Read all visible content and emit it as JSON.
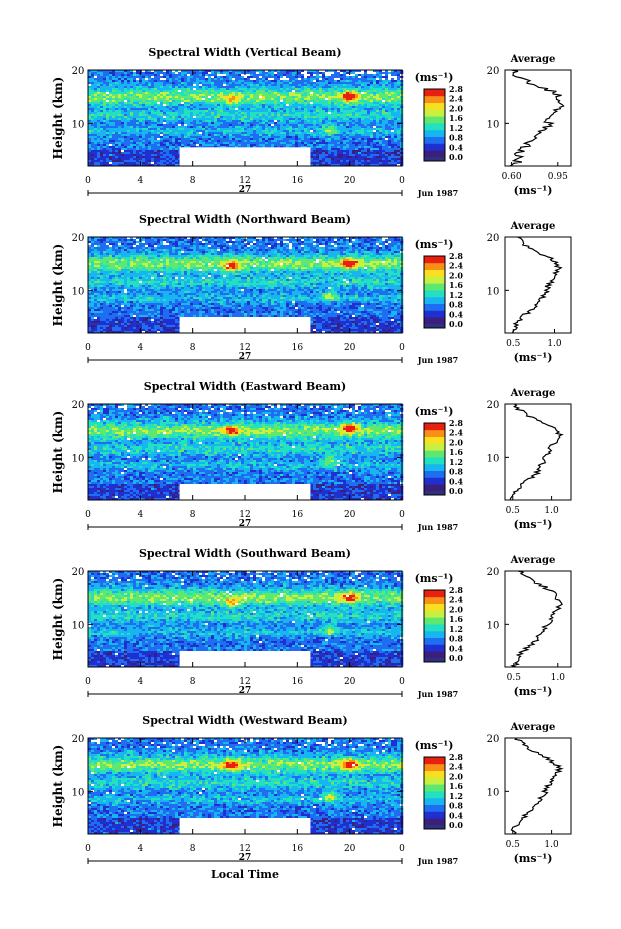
{
  "chart_data": [
    {
      "type": "heatmap",
      "title": "Spectral Width (Vertical Beam)",
      "ylabel": "Height (km)",
      "xlabel": "",
      "x_ticks": [
        "0",
        "4",
        "8",
        "12",
        "16",
        "20",
        "0"
      ],
      "y_ticks": [
        "10",
        "20"
      ],
      "xlim": [
        0,
        24
      ],
      "ylim": [
        2,
        20
      ],
      "date_number": "27",
      "date_month": "Jun 1987",
      "colorbar": {
        "unit": "(ms⁻¹)",
        "ticks": [
          "0.0",
          "0.4",
          "0.8",
          "1.2",
          "1.6",
          "2.0",
          "2.4",
          "2.8"
        ],
        "range": [
          0,
          2.8
        ]
      },
      "gap": {
        "x": [
          7,
          17
        ],
        "y": [
          2,
          5.5
        ]
      },
      "hotspots": [
        {
          "x": 11,
          "y": 14.5,
          "value": 2.0
        },
        {
          "x": 20,
          "y": 15,
          "value": 2.8
        },
        {
          "x": 18.5,
          "y": 9,
          "value": 2.0
        }
      ],
      "average": {
        "title": "Average",
        "xlabel": "(ms⁻¹)",
        "x_ticks": [
          "0.60",
          "0.95"
        ],
        "xlim": [
          0.55,
          1.05
        ],
        "y_ticks": [
          "10",
          "20"
        ],
        "profile": [
          [
            2,
            0.62
          ],
          [
            3,
            0.65
          ],
          [
            4,
            0.64
          ],
          [
            5,
            0.68
          ],
          [
            6,
            0.72
          ],
          [
            7,
            0.78
          ],
          [
            8,
            0.83
          ],
          [
            9,
            0.86
          ],
          [
            10,
            0.88
          ],
          [
            11,
            0.9
          ],
          [
            12,
            0.92
          ],
          [
            13,
            0.95
          ],
          [
            14,
            0.97
          ],
          [
            15,
            0.96
          ],
          [
            16,
            0.9
          ],
          [
            17,
            0.8
          ],
          [
            18,
            0.7
          ],
          [
            19,
            0.64
          ],
          [
            20,
            0.6
          ]
        ]
      }
    },
    {
      "type": "heatmap",
      "title": "Spectral Width (Northward Beam)",
      "ylabel": "Height (km)",
      "xlabel": "",
      "x_ticks": [
        "0",
        "4",
        "8",
        "12",
        "16",
        "20",
        "0"
      ],
      "y_ticks": [
        "10",
        "20"
      ],
      "xlim": [
        0,
        24
      ],
      "ylim": [
        2,
        20
      ],
      "date_number": "27",
      "date_month": "Jun 1987",
      "colorbar": {
        "unit": "(ms⁻¹)",
        "ticks": [
          "0.0",
          "0.4",
          "0.8",
          "1.2",
          "1.6",
          "2.0",
          "2.4",
          "2.8"
        ],
        "range": [
          0,
          2.8
        ]
      },
      "gap": {
        "x": [
          7,
          17
        ],
        "y": [
          2,
          5
        ]
      },
      "hotspots": [
        {
          "x": 11,
          "y": 14.5,
          "value": 2.6
        },
        {
          "x": 20,
          "y": 15,
          "value": 2.8
        },
        {
          "x": 18.5,
          "y": 9,
          "value": 2.0
        }
      ],
      "average": {
        "title": "Average",
        "xlabel": "(ms⁻¹)",
        "x_ticks": [
          "0.5",
          "1.0"
        ],
        "xlim": [
          0.4,
          1.2
        ],
        "y_ticks": [
          "10",
          "20"
        ],
        "profile": [
          [
            2,
            0.5
          ],
          [
            3,
            0.52
          ],
          [
            4,
            0.55
          ],
          [
            5,
            0.6
          ],
          [
            6,
            0.7
          ],
          [
            7,
            0.78
          ],
          [
            8,
            0.82
          ],
          [
            9,
            0.86
          ],
          [
            10,
            0.9
          ],
          [
            11,
            0.93
          ],
          [
            12,
            0.96
          ],
          [
            13,
            1.0
          ],
          [
            14,
            1.05
          ],
          [
            15,
            1.02
          ],
          [
            16,
            0.95
          ],
          [
            17,
            0.82
          ],
          [
            18,
            0.7
          ],
          [
            19,
            0.6
          ],
          [
            20,
            0.55
          ]
        ]
      }
    },
    {
      "type": "heatmap",
      "title": "Spectral Width (Eastward Beam)",
      "ylabel": "Height (km)",
      "xlabel": "",
      "x_ticks": [
        "0",
        "4",
        "8",
        "12",
        "16",
        "20",
        "0"
      ],
      "y_ticks": [
        "10",
        "20"
      ],
      "xlim": [
        0,
        24
      ],
      "ylim": [
        2,
        20
      ],
      "date_number": "27",
      "date_month": "Jun 1987",
      "colorbar": {
        "unit": "(ms⁻¹)",
        "ticks": [
          "0.0",
          "0.4",
          "0.8",
          "1.2",
          "1.6",
          "2.0",
          "2.4",
          "2.8"
        ],
        "range": [
          0,
          2.8
        ]
      },
      "gap": {
        "x": [
          7,
          17
        ],
        "y": [
          2,
          5
        ]
      },
      "hotspots": [
        {
          "x": 11,
          "y": 15,
          "value": 2.6
        },
        {
          "x": 20,
          "y": 15.5,
          "value": 2.8
        },
        {
          "x": 18.5,
          "y": 9.5,
          "value": 2.0
        }
      ],
      "average": {
        "title": "Average",
        "xlabel": "(ms⁻¹)",
        "x_ticks": [
          "0.5",
          "1.0"
        ],
        "xlim": [
          0.4,
          1.25
        ],
        "y_ticks": [
          "10",
          "20"
        ],
        "profile": [
          [
            2,
            0.48
          ],
          [
            3,
            0.5
          ],
          [
            4,
            0.55
          ],
          [
            5,
            0.62
          ],
          [
            6,
            0.72
          ],
          [
            7,
            0.8
          ],
          [
            8,
            0.85
          ],
          [
            9,
            0.88
          ],
          [
            10,
            0.92
          ],
          [
            11,
            0.95
          ],
          [
            12,
            1.0
          ],
          [
            13,
            1.05
          ],
          [
            14,
            1.1
          ],
          [
            15,
            1.08
          ],
          [
            16,
            0.98
          ],
          [
            17,
            0.82
          ],
          [
            18,
            0.68
          ],
          [
            19,
            0.58
          ],
          [
            20,
            0.52
          ]
        ]
      }
    },
    {
      "type": "heatmap",
      "title": "Spectral Width (Southward Beam)",
      "ylabel": "Height (km)",
      "xlabel": "",
      "x_ticks": [
        "0",
        "4",
        "8",
        "12",
        "16",
        "20",
        "0"
      ],
      "y_ticks": [
        "10",
        "20"
      ],
      "xlim": [
        0,
        24
      ],
      "ylim": [
        2,
        20
      ],
      "date_number": "27",
      "date_month": "Jun 1987",
      "colorbar": {
        "unit": "(ms⁻¹)",
        "ticks": [
          "0.0",
          "0.4",
          "0.8",
          "1.2",
          "1.6",
          "2.0",
          "2.4",
          "2.8"
        ],
        "range": [
          0,
          2.8
        ]
      },
      "gap": {
        "x": [
          7,
          17
        ],
        "y": [
          2,
          5
        ]
      },
      "hotspots": [
        {
          "x": 11,
          "y": 14,
          "value": 2.2
        },
        {
          "x": 20,
          "y": 15,
          "value": 2.6
        },
        {
          "x": 18.5,
          "y": 9,
          "value": 2.0
        }
      ],
      "average": {
        "title": "Average",
        "xlabel": "(ms⁻¹)",
        "x_ticks": [
          "0.5",
          "1.0"
        ],
        "xlim": [
          0.4,
          1.15
        ],
        "y_ticks": [
          "10",
          "20"
        ],
        "profile": [
          [
            2,
            0.5
          ],
          [
            3,
            0.52
          ],
          [
            4,
            0.55
          ],
          [
            5,
            0.6
          ],
          [
            6,
            0.68
          ],
          [
            7,
            0.75
          ],
          [
            8,
            0.8
          ],
          [
            9,
            0.85
          ],
          [
            10,
            0.88
          ],
          [
            11,
            0.92
          ],
          [
            12,
            0.96
          ],
          [
            13,
            1.0
          ],
          [
            14,
            1.03
          ],
          [
            15,
            1.0
          ],
          [
            16,
            0.95
          ],
          [
            17,
            0.85
          ],
          [
            18,
            0.72
          ],
          [
            19,
            0.62
          ],
          [
            20,
            0.55
          ]
        ]
      }
    },
    {
      "type": "heatmap",
      "title": "Spectral Width (Westward Beam)",
      "ylabel": "Height (km)",
      "xlabel": "Local Time",
      "x_ticks": [
        "0",
        "4",
        "8",
        "12",
        "16",
        "20",
        "0"
      ],
      "y_ticks": [
        "10",
        "20"
      ],
      "xlim": [
        0,
        24
      ],
      "ylim": [
        2,
        20
      ],
      "date_number": "27",
      "date_month": "Jun 1987",
      "colorbar": {
        "unit": "(ms⁻¹)",
        "ticks": [
          "0.0",
          "0.4",
          "0.8",
          "1.2",
          "1.6",
          "2.0",
          "2.4",
          "2.8"
        ],
        "range": [
          0,
          2.8
        ]
      },
      "gap": {
        "x": [
          7,
          17
        ],
        "y": [
          2,
          5
        ]
      },
      "hotspots": [
        {
          "x": 11,
          "y": 15,
          "value": 2.6
        },
        {
          "x": 20,
          "y": 15,
          "value": 2.8
        },
        {
          "x": 18.5,
          "y": 9,
          "value": 2.0
        }
      ],
      "average": {
        "title": "Average",
        "xlabel": "(ms⁻¹)",
        "x_ticks": [
          "0.5",
          "1.0"
        ],
        "xlim": [
          0.4,
          1.25
        ],
        "y_ticks": [
          "10",
          "20"
        ],
        "profile": [
          [
            2,
            0.5
          ],
          [
            3,
            0.52
          ],
          [
            4,
            0.56
          ],
          [
            5,
            0.62
          ],
          [
            6,
            0.7
          ],
          [
            7,
            0.78
          ],
          [
            8,
            0.84
          ],
          [
            9,
            0.88
          ],
          [
            10,
            0.92
          ],
          [
            11,
            0.96
          ],
          [
            12,
            1.0
          ],
          [
            13,
            1.05
          ],
          [
            14,
            1.1
          ],
          [
            15,
            1.06
          ],
          [
            16,
            0.96
          ],
          [
            17,
            0.85
          ],
          [
            18,
            0.72
          ],
          [
            19,
            0.62
          ],
          [
            20,
            0.55
          ]
        ]
      }
    }
  ],
  "colors": {
    "colormap": [
      "#3b1f7a",
      "#1f2fd0",
      "#1f6df0",
      "#18b6f0",
      "#22e0c0",
      "#5fe870",
      "#c8f040",
      "#f8e020",
      "#f89018",
      "#e82010"
    ],
    "gap": "#ffffff",
    "colorbar_bottom": "#303080"
  }
}
